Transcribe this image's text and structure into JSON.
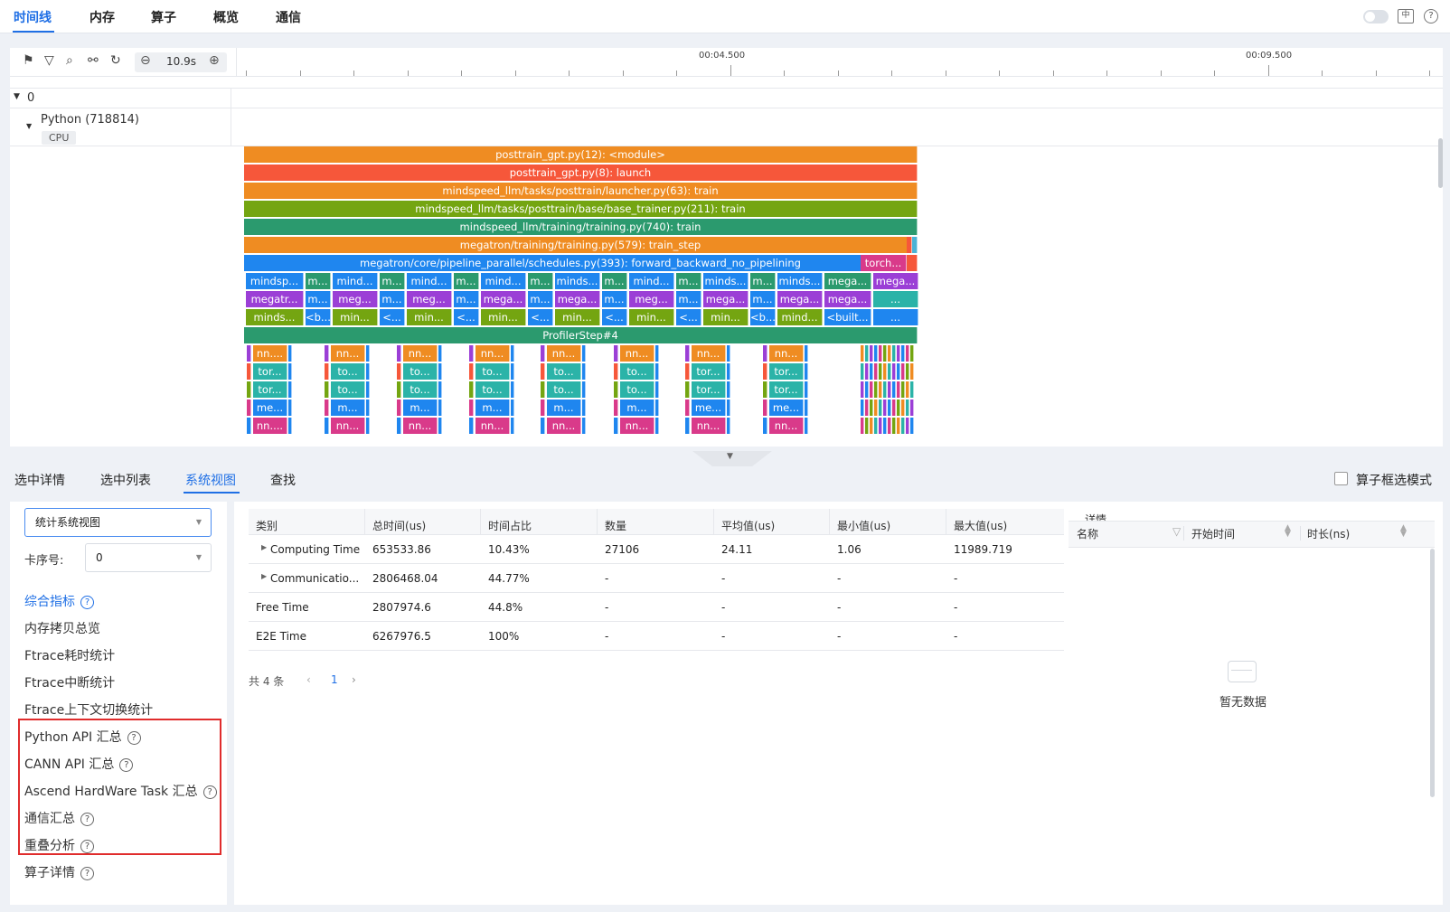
{
  "topbar": {
    "tabs": [
      "时间线",
      "内存",
      "算子",
      "概览",
      "通信"
    ],
    "icons": [
      "toggle-switch-icon",
      "language-icon",
      "help-icon"
    ]
  },
  "timeline": {
    "zoom_value": "10.9s",
    "ruler_labels": [
      "00:04.500",
      "00:09.500"
    ],
    "group_label": "0",
    "process_label": "Python (718814)",
    "thread_label": "CPU",
    "flame_rows": [
      {
        "label": "posttrain_gpt.py(12): <module>",
        "color": "#ef8c22"
      },
      {
        "label": "posttrain_gpt.py(8): launch",
        "color": "#f6573a"
      },
      {
        "label": "mindspeed_llm/tasks/posttrain/launcher.py(63): train",
        "color": "#ef8c22"
      },
      {
        "label": "mindspeed_llm/tasks/posttrain/base/base_trainer.py(211): train",
        "color": "#74a511"
      },
      {
        "label": "mindspeed_llm/training/training.py(740): train",
        "color": "#2b9a6e"
      },
      {
        "label": "megatron/training/training.py(579): train_step",
        "color": "#ef8c22"
      },
      {
        "label": "megatron/core/pipeline_parallel/schedules.py(393): forward_backward_no_pipelining",
        "color": "#1f86ef"
      }
    ],
    "torch_label": "torch...",
    "row8": [
      "mindsp...",
      "m...",
      "mind...",
      "m...",
      "mind...",
      "m...",
      "mind...",
      "m...",
      "minds...",
      "m...",
      "mind...",
      "m...",
      "minds...",
      "m...",
      "minds...",
      "mega...",
      "mega..."
    ],
    "row9": [
      "megatr...",
      "m...",
      "meg...",
      "m...",
      "meg...",
      "m...",
      "mega...",
      "m...",
      "mega...",
      "m...",
      "meg...",
      "m...",
      "mega...",
      "m...",
      "mega...",
      "mega...",
      "..."
    ],
    "row10": [
      "minds...",
      "<b...",
      "min...",
      "<...",
      "min...",
      "<...",
      "min...",
      "<...",
      "min...",
      "<...",
      "min...",
      "<...",
      "min...",
      "<b...",
      "mind...",
      "<built...",
      "..."
    ],
    "profiler_step": "ProfilerStep#4",
    "sub_rows": [
      [
        "nn....",
        "nn...",
        "nn...",
        "nn...",
        "nn...",
        "nn...",
        "nn...",
        "nn..."
      ],
      [
        "tor...",
        "to...",
        "to...",
        "to...",
        "to...",
        "to...",
        "tor...",
        "tor..."
      ],
      [
        "tor...",
        "to...",
        "to...",
        "to...",
        "to...",
        "to...",
        "tor...",
        "tor..."
      ],
      [
        "me...",
        "m...",
        "m...",
        "m...",
        "m...",
        "m...",
        "me...",
        "me..."
      ],
      [
        "nn....",
        "nn...",
        "nn...",
        "nn...",
        "nn...",
        "nn...",
        "nn...",
        "nn..."
      ]
    ]
  },
  "bottom_tabs": [
    "选中详情",
    "选中列表",
    "系统视图",
    "查找"
  ],
  "box_select_label": "算子框选模式",
  "left_panel": {
    "view_select": "统计系统视图",
    "card_label": "卡序号:",
    "card_value": "0",
    "nav_items": [
      "综合指标",
      "内存拷贝总览",
      "Ftrace耗时统计",
      "Ftrace中断统计",
      "Ftrace上下文切换统计",
      "Python API 汇总",
      "CANN API 汇总",
      "Ascend HardWare Task 汇总",
      "通信汇总",
      "重叠分析",
      "算子详情"
    ]
  },
  "table": {
    "headers": [
      "类别",
      "总时间(us)",
      "时间占比",
      "数量",
      "平均值(us)",
      "最小值(us)",
      "最大值(us)"
    ],
    "rows": [
      [
        "Computing Time",
        "653533.86",
        "10.43%",
        "27106",
        "24.11",
        "1.06",
        "11989.719"
      ],
      [
        "Communicatio...",
        "2806468.04",
        "44.77%",
        "-",
        "-",
        "-",
        "-"
      ],
      [
        "Free Time",
        "2807974.6",
        "44.8%",
        "-",
        "-",
        "-",
        "-"
      ],
      [
        "E2E Time",
        "6267976.5",
        "100%",
        "-",
        "-",
        "-",
        "-"
      ]
    ],
    "total_text": "共 4 条",
    "page": "1"
  },
  "detail": {
    "title": "详情",
    "headers": [
      "名称",
      "开始时间",
      "时长(ns)"
    ],
    "empty_text": "暂无数据"
  }
}
